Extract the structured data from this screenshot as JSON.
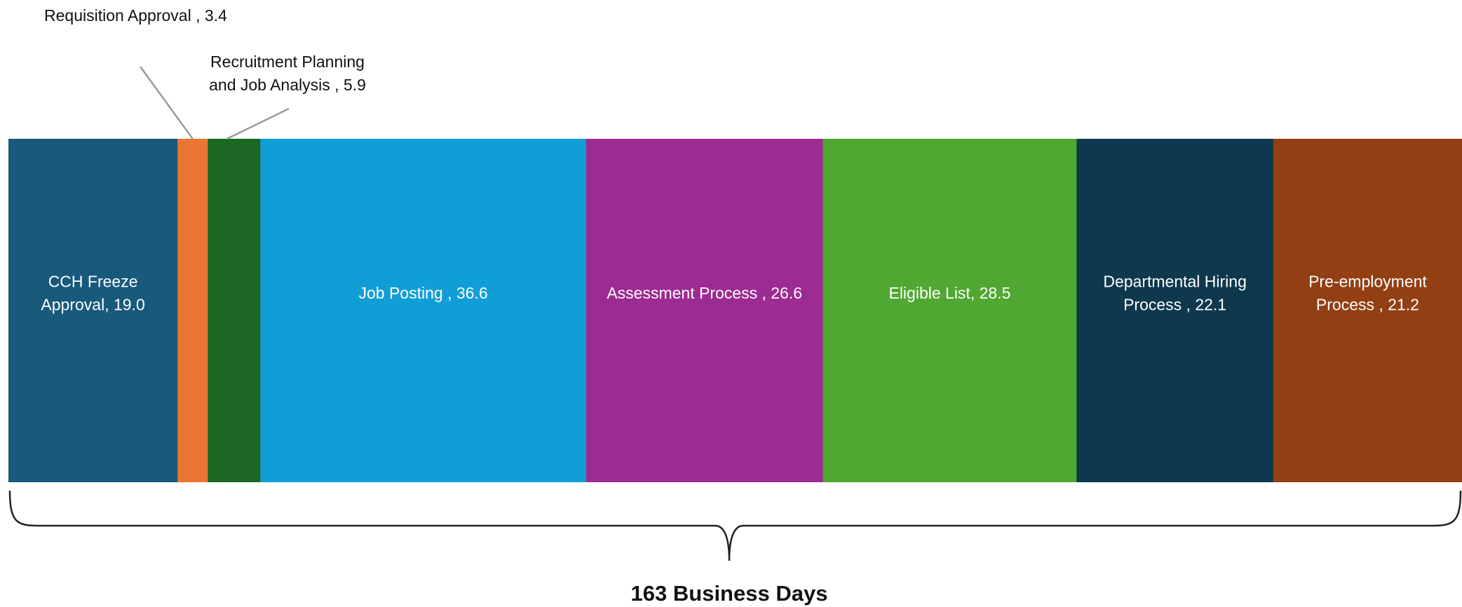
{
  "chart_data": {
    "type": "bar",
    "orientation": "horizontal-stacked",
    "title": "",
    "xlabel": "",
    "ylabel": "",
    "total_label": "163 Business Days",
    "total": 163,
    "segments": [
      {
        "name": "CCH Freeze Approval",
        "value": 19.0,
        "label_lines": [
          "CCH Freeze",
          "Approval, 19.0"
        ],
        "color": "#175a7b",
        "label_position": "inside"
      },
      {
        "name": "Requisition Approval",
        "value": 3.4,
        "label_lines": [
          "Requisition Approval , 3.4"
        ],
        "color": "#eb7533",
        "label_position": "callout-above"
      },
      {
        "name": "Recruitment Planning and Job Analysis",
        "value": 5.9,
        "label_lines": [
          "Recruitment Planning",
          "and Job Analysis , 5.9"
        ],
        "color": "#1a6823",
        "label_position": "callout-above"
      },
      {
        "name": "Job Posting",
        "value": 36.6,
        "label_lines": [
          "Job Posting , 36.6"
        ],
        "color": "#119ed6",
        "label_position": "inside"
      },
      {
        "name": "Assessment Process",
        "value": 26.6,
        "label_lines": [
          "Assessment Process , 26.6"
        ],
        "color": "#9c2b92",
        "label_position": "inside"
      },
      {
        "name": "Eligible List",
        "value": 28.5,
        "label_lines": [
          "Eligible List, 28.5"
        ],
        "color": "#50a732",
        "label_position": "inside"
      },
      {
        "name": "Departmental Hiring Process",
        "value": 22.1,
        "label_lines": [
          "Departmental Hiring",
          "Process , 22.1"
        ],
        "color": "#0e394d",
        "label_position": "inside"
      },
      {
        "name": "Pre-employment Process",
        "value": 21.2,
        "label_lines": [
          "Pre-employment",
          "Process , 21.2"
        ],
        "color": "#924013",
        "label_position": "inside"
      }
    ]
  }
}
